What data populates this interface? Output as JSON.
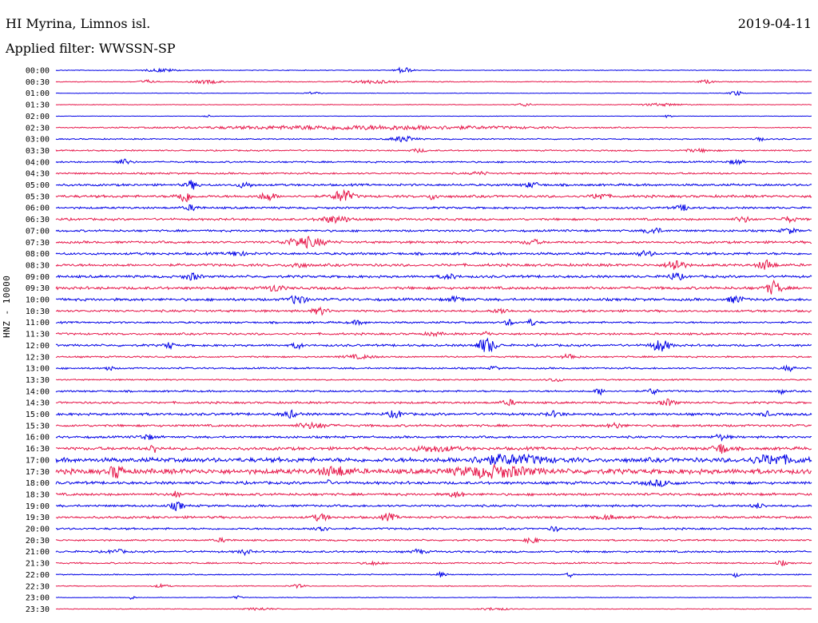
{
  "header": {
    "station": "HI Myrina, Limnos isl.",
    "date": "2019-04-11",
    "filter": "Applied filter: WWSSN-SP"
  },
  "colors": {
    "even": "#0000e6",
    "odd": "#e6174a"
  },
  "chart_data": {
    "type": "line",
    "title": "HI Myrina, Limnos isl.",
    "subtitle": "Applied filter: WWSSN-SP",
    "date": "2019-04-11",
    "ylabel": "HNZ - 10000",
    "xlabel": "",
    "trace_order": "00:00 to 23:30, alternating blue / red",
    "categories": [
      "00:00",
      "00:30",
      "01:00",
      "01:30",
      "02:00",
      "02:30",
      "03:00",
      "03:30",
      "04:00",
      "04:30",
      "05:00",
      "05:30",
      "06:00",
      "06:30",
      "07:00",
      "07:30",
      "08:00",
      "08:30",
      "09:00",
      "09:30",
      "10:00",
      "10:30",
      "11:00",
      "11:30",
      "12:00",
      "12:30",
      "13:00",
      "13:30",
      "14:00",
      "14:30",
      "15:00",
      "15:30",
      "16:00",
      "16:30",
      "17:00",
      "17:30",
      "18:00",
      "18:30",
      "19:00",
      "19:30",
      "20:00",
      "20:30",
      "21:00",
      "21:30",
      "22:00",
      "22:30",
      "23:00",
      "23:30"
    ],
    "series": [
      {
        "label": "00:00",
        "noise": 0.5,
        "events": [
          {
            "x": 0.46,
            "amp": 4,
            "w": 0.01
          },
          {
            "x": 0.14,
            "amp": 2,
            "w": 0.02
          }
        ]
      },
      {
        "label": "00:30",
        "noise": 0.6,
        "events": [
          {
            "x": 0.12,
            "amp": 2,
            "w": 0.01
          },
          {
            "x": 0.2,
            "amp": 2,
            "w": 0.02
          },
          {
            "x": 0.42,
            "amp": 2,
            "w": 0.03
          },
          {
            "x": 0.86,
            "amp": 2,
            "w": 0.01
          }
        ]
      },
      {
        "label": "01:00",
        "noise": 0.4,
        "events": [
          {
            "x": 0.9,
            "amp": 3,
            "w": 0.008
          },
          {
            "x": 0.34,
            "amp": 1.5,
            "w": 0.01
          }
        ]
      },
      {
        "label": "01:30",
        "noise": 0.5,
        "events": [
          {
            "x": 0.62,
            "amp": 2,
            "w": 0.01
          },
          {
            "x": 0.8,
            "amp": 1.5,
            "w": 0.03
          }
        ]
      },
      {
        "label": "02:00",
        "noise": 0.3,
        "events": [
          {
            "x": 0.2,
            "amp": 1.5,
            "w": 0.005
          },
          {
            "x": 0.81,
            "amp": 2,
            "w": 0.005
          }
        ]
      },
      {
        "label": "02:30",
        "noise": 0.6,
        "events": [
          {
            "x": 0.41,
            "amp": 2.5,
            "w": 0.22
          }
        ]
      },
      {
        "label": "03:00",
        "noise": 0.9,
        "events": [
          {
            "x": 0.46,
            "amp": 3.5,
            "w": 0.015
          },
          {
            "x": 0.93,
            "amp": 3,
            "w": 0.006
          }
        ]
      },
      {
        "label": "03:30",
        "noise": 1,
        "events": [
          {
            "x": 0.48,
            "amp": 2,
            "w": 0.01
          },
          {
            "x": 0.85,
            "amp": 1.5,
            "w": 0.02
          }
        ]
      },
      {
        "label": "04:00",
        "noise": 1.2,
        "events": [
          {
            "x": 0.09,
            "amp": 3,
            "w": 0.01
          },
          {
            "x": 0.9,
            "amp": 2.5,
            "w": 0.01
          }
        ]
      },
      {
        "label": "04:30",
        "noise": 1.3,
        "events": [
          {
            "x": 0.56,
            "amp": 2,
            "w": 0.01
          }
        ]
      },
      {
        "label": "05:00",
        "noise": 1.6,
        "events": [
          {
            "x": 0.18,
            "amp": 5,
            "w": 0.008
          },
          {
            "x": 0.25,
            "amp": 3,
            "w": 0.01
          },
          {
            "x": 0.63,
            "amp": 3,
            "w": 0.01
          }
        ]
      },
      {
        "label": "05:30",
        "noise": 1.8,
        "events": [
          {
            "x": 0.17,
            "amp": 7,
            "w": 0.01
          },
          {
            "x": 0.28,
            "amp": 5,
            "w": 0.01
          },
          {
            "x": 0.38,
            "amp": 8,
            "w": 0.012
          },
          {
            "x": 0.5,
            "amp": 5,
            "w": 0.005
          },
          {
            "x": 0.72,
            "amp": 4,
            "w": 0.01
          }
        ]
      },
      {
        "label": "06:00",
        "noise": 1.5,
        "events": [
          {
            "x": 0.18,
            "amp": 3,
            "w": 0.01
          },
          {
            "x": 0.83,
            "amp": 3,
            "w": 0.01
          }
        ]
      },
      {
        "label": "06:30",
        "noise": 1.6,
        "events": [
          {
            "x": 0.37,
            "amp": 4,
            "w": 0.02
          },
          {
            "x": 0.91,
            "amp": 3,
            "w": 0.01
          },
          {
            "x": 0.97,
            "amp": 3,
            "w": 0.01
          }
        ]
      },
      {
        "label": "07:00",
        "noise": 1.5,
        "events": [
          {
            "x": 0.79,
            "amp": 4,
            "w": 0.01
          },
          {
            "x": 0.97,
            "amp": 3,
            "w": 0.01
          }
        ]
      },
      {
        "label": "07:30",
        "noise": 1.7,
        "events": [
          {
            "x": 0.33,
            "amp": 6,
            "w": 0.025
          },
          {
            "x": 0.63,
            "amp": 3,
            "w": 0.01
          }
        ]
      },
      {
        "label": "08:00",
        "noise": 1.8,
        "events": [
          {
            "x": 0.24,
            "amp": 3,
            "w": 0.01
          },
          {
            "x": 0.78,
            "amp": 3,
            "w": 0.01
          }
        ]
      },
      {
        "label": "08:30",
        "noise": 1.9,
        "events": [
          {
            "x": 0.82,
            "amp": 8,
            "w": 0.01
          },
          {
            "x": 0.94,
            "amp": 6,
            "w": 0.01
          },
          {
            "x": 0.32,
            "amp": 3,
            "w": 0.01
          }
        ]
      },
      {
        "label": "09:00",
        "noise": 1.8,
        "events": [
          {
            "x": 0.18,
            "amp": 4,
            "w": 0.01
          },
          {
            "x": 0.52,
            "amp": 3,
            "w": 0.01
          },
          {
            "x": 0.82,
            "amp": 4,
            "w": 0.01
          }
        ]
      },
      {
        "label": "09:30",
        "noise": 2,
        "events": [
          {
            "x": 0.29,
            "amp": 4,
            "w": 0.01
          },
          {
            "x": 0.95,
            "amp": 8,
            "w": 0.01
          }
        ]
      },
      {
        "label": "10:00",
        "noise": 1.9,
        "events": [
          {
            "x": 0.32,
            "amp": 6,
            "w": 0.01
          },
          {
            "x": 0.53,
            "amp": 3,
            "w": 0.01
          },
          {
            "x": 0.9,
            "amp": 4,
            "w": 0.01
          }
        ]
      },
      {
        "label": "10:30",
        "noise": 1.6,
        "events": [
          {
            "x": 0.35,
            "amp": 4,
            "w": 0.01
          },
          {
            "x": 0.59,
            "amp": 3,
            "w": 0.01
          }
        ]
      },
      {
        "label": "11:00",
        "noise": 1.4,
        "events": [
          {
            "x": 0.6,
            "amp": 3.5,
            "w": 0.006
          },
          {
            "x": 0.63,
            "amp": 4,
            "w": 0.006
          },
          {
            "x": 0.4,
            "amp": 2,
            "w": 0.01
          }
        ]
      },
      {
        "label": "11:30",
        "noise": 1.5,
        "events": [
          {
            "x": 0.57,
            "amp": 3,
            "w": 0.005
          },
          {
            "x": 0.5,
            "amp": 2,
            "w": 0.01
          }
        ]
      },
      {
        "label": "12:00",
        "noise": 1.6,
        "events": [
          {
            "x": 0.15,
            "amp": 4,
            "w": 0.006
          },
          {
            "x": 0.32,
            "amp": 4,
            "w": 0.006
          },
          {
            "x": 0.57,
            "amp": 9,
            "w": 0.012
          },
          {
            "x": 0.8,
            "amp": 7,
            "w": 0.012
          }
        ]
      },
      {
        "label": "12:30",
        "noise": 1.2,
        "events": [
          {
            "x": 0.68,
            "amp": 3,
            "w": 0.01
          },
          {
            "x": 0.4,
            "amp": 2,
            "w": 0.02
          }
        ]
      },
      {
        "label": "13:00",
        "noise": 1.2,
        "events": [
          {
            "x": 0.07,
            "amp": 3,
            "w": 0.005
          },
          {
            "x": 0.58,
            "amp": 3,
            "w": 0.005
          },
          {
            "x": 0.97,
            "amp": 3,
            "w": 0.008
          }
        ]
      },
      {
        "label": "13:30",
        "noise": 1,
        "events": [
          {
            "x": 0.66,
            "amp": 2,
            "w": 0.01
          }
        ]
      },
      {
        "label": "14:00",
        "noise": 1.3,
        "events": [
          {
            "x": 0.72,
            "amp": 4,
            "w": 0.006
          },
          {
            "x": 0.79,
            "amp": 4,
            "w": 0.006
          },
          {
            "x": 0.96,
            "amp": 3,
            "w": 0.004
          }
        ]
      },
      {
        "label": "14:30",
        "noise": 1.5,
        "events": [
          {
            "x": 0.6,
            "amp": 3,
            "w": 0.01
          },
          {
            "x": 0.81,
            "amp": 4,
            "w": 0.01
          }
        ]
      },
      {
        "label": "15:00",
        "noise": 1.8,
        "events": [
          {
            "x": 0.31,
            "amp": 4,
            "w": 0.01
          },
          {
            "x": 0.45,
            "amp": 4,
            "w": 0.01
          },
          {
            "x": 0.66,
            "amp": 3,
            "w": 0.01
          },
          {
            "x": 0.94,
            "amp": 3,
            "w": 0.006
          }
        ]
      },
      {
        "label": "15:30",
        "noise": 1.7,
        "events": [
          {
            "x": 0.34,
            "amp": 3,
            "w": 0.02
          },
          {
            "x": 0.74,
            "amp": 3,
            "w": 0.01
          }
        ]
      },
      {
        "label": "16:00",
        "noise": 1.6,
        "events": [
          {
            "x": 0.12,
            "amp": 3,
            "w": 0.01
          },
          {
            "x": 0.88,
            "amp": 3,
            "w": 0.01
          }
        ]
      },
      {
        "label": "16:30",
        "noise": 2.2,
        "events": [
          {
            "x": 0.13,
            "amp": 5,
            "w": 0.006
          },
          {
            "x": 0.88,
            "amp": 6,
            "w": 0.01
          },
          {
            "x": 0.5,
            "amp": 3,
            "w": 0.03
          }
        ]
      },
      {
        "label": "17:00",
        "noise": 3.2,
        "events": [
          {
            "x": 0.6,
            "amp": 5,
            "w": 0.05
          },
          {
            "x": 0.95,
            "amp": 5,
            "w": 0.03
          }
        ]
      },
      {
        "label": "17:30",
        "noise": 3.6,
        "events": [
          {
            "x": 0.08,
            "amp": 8,
            "w": 0.008
          },
          {
            "x": 0.58,
            "amp": 6,
            "w": 0.05
          },
          {
            "x": 0.37,
            "amp": 5,
            "w": 0.02
          }
        ]
      },
      {
        "label": "18:00",
        "noise": 2,
        "events": [
          {
            "x": 0.36,
            "amp": 8,
            "w": 0.002
          },
          {
            "x": 0.8,
            "amp": 3,
            "w": 0.02
          }
        ]
      },
      {
        "label": "18:30",
        "noise": 1.8,
        "events": [
          {
            "x": 0.16,
            "amp": 4,
            "w": 0.006
          },
          {
            "x": 0.53,
            "amp": 3,
            "w": 0.01
          }
        ]
      },
      {
        "label": "19:00",
        "noise": 1.6,
        "events": [
          {
            "x": 0.16,
            "amp": 5,
            "w": 0.008
          },
          {
            "x": 0.93,
            "amp": 3,
            "w": 0.008
          }
        ]
      },
      {
        "label": "19:30",
        "noise": 1.7,
        "events": [
          {
            "x": 0.35,
            "amp": 4,
            "w": 0.01
          },
          {
            "x": 0.44,
            "amp": 4,
            "w": 0.01
          },
          {
            "x": 0.73,
            "amp": 3,
            "w": 0.01
          }
        ]
      },
      {
        "label": "20:00",
        "noise": 1.4,
        "events": [
          {
            "x": 0.35,
            "amp": 5,
            "w": 0.008
          },
          {
            "x": 0.66,
            "amp": 3,
            "w": 0.006
          }
        ]
      },
      {
        "label": "20:30",
        "noise": 1.2,
        "events": [
          {
            "x": 0.63,
            "amp": 4,
            "w": 0.008
          },
          {
            "x": 0.22,
            "amp": 2,
            "w": 0.01
          }
        ]
      },
      {
        "label": "21:00",
        "noise": 1.4,
        "events": [
          {
            "x": 0.25,
            "amp": 3,
            "w": 0.008
          },
          {
            "x": 0.48,
            "amp": 3,
            "w": 0.008
          },
          {
            "x": 0.08,
            "amp": 2.5,
            "w": 0.01
          }
        ]
      },
      {
        "label": "21:30",
        "noise": 1.1,
        "events": [
          {
            "x": 0.42,
            "amp": 2,
            "w": 0.01
          },
          {
            "x": 0.96,
            "amp": 3,
            "w": 0.006
          }
        ]
      },
      {
        "label": "22:00",
        "noise": 0.8,
        "events": [
          {
            "x": 0.51,
            "amp": 3,
            "w": 0.006
          },
          {
            "x": 0.68,
            "amp": 3,
            "w": 0.004
          },
          {
            "x": 0.9,
            "amp": 3,
            "w": 0.004
          }
        ]
      },
      {
        "label": "22:30",
        "noise": 0.6,
        "events": [
          {
            "x": 0.14,
            "amp": 2,
            "w": 0.01
          },
          {
            "x": 0.32,
            "amp": 2,
            "w": 0.01
          }
        ]
      },
      {
        "label": "23:00",
        "noise": 0.5,
        "events": [
          {
            "x": 0.1,
            "amp": 2,
            "w": 0.005
          },
          {
            "x": 0.24,
            "amp": 2,
            "w": 0.005
          }
        ]
      },
      {
        "label": "23:30",
        "noise": 0.5,
        "events": [
          {
            "x": 0.27,
            "amp": 1.5,
            "w": 0.02
          },
          {
            "x": 0.58,
            "amp": 1.5,
            "w": 0.02
          }
        ]
      }
    ]
  }
}
